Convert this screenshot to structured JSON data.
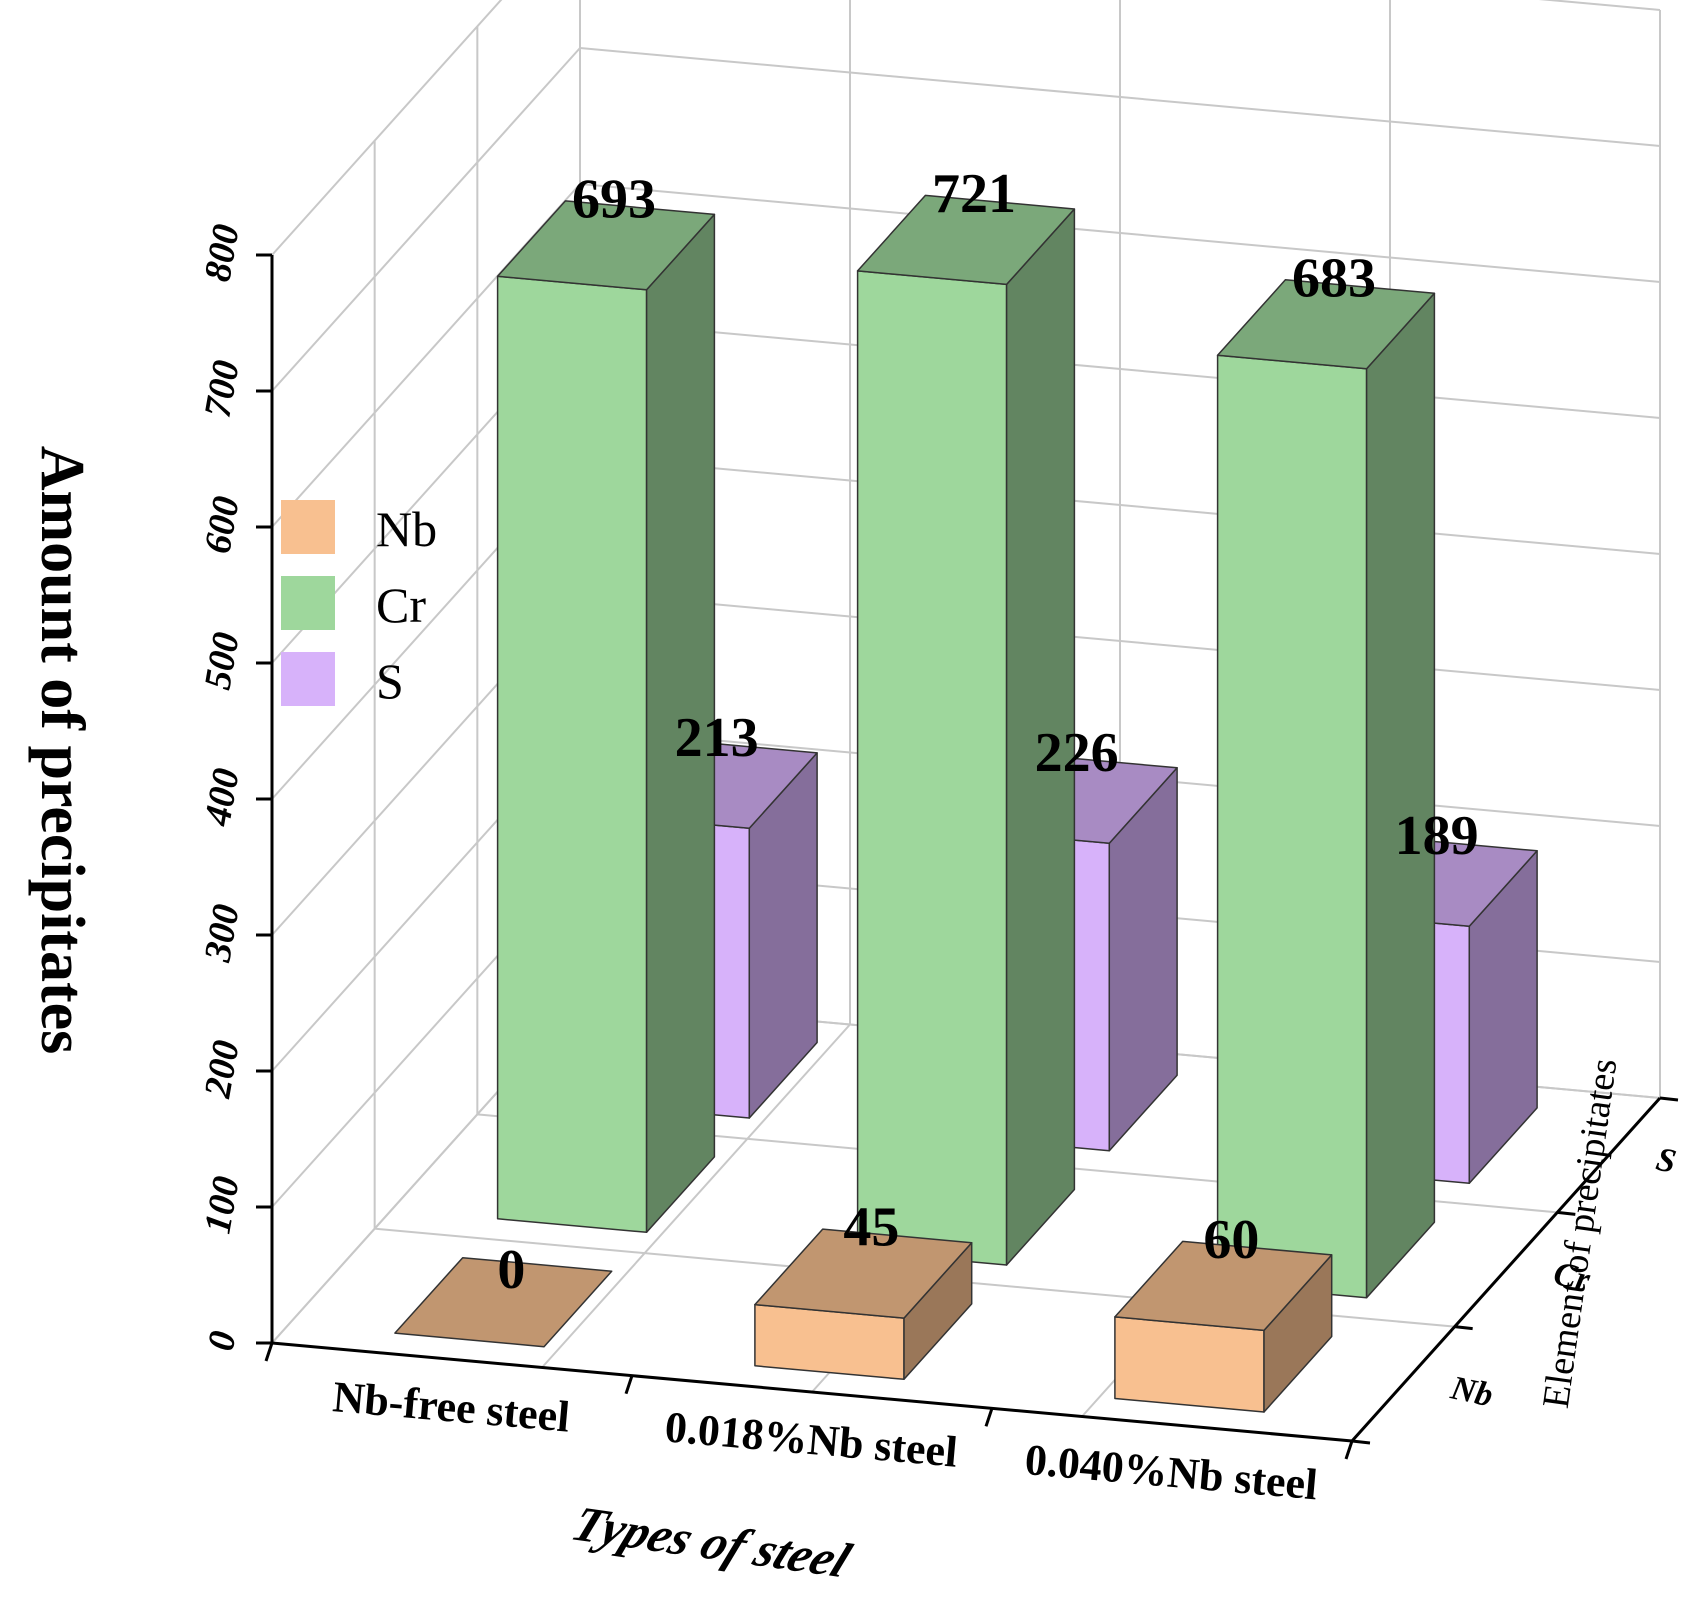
{
  "chart_data": {
    "type": "bar",
    "title": "",
    "categories": [
      "Nb-free steel",
      "0.018%Nb steel",
      "0.040%Nb steel"
    ],
    "series": [
      {
        "name": "Nb",
        "values": [
          0,
          45,
          60
        ],
        "color": "#f8c090"
      },
      {
        "name": "Cr",
        "values": [
          693,
          721,
          683
        ],
        "color": "#9ed79c"
      },
      {
        "name": "S",
        "values": [
          213,
          226,
          189
        ],
        "color": "#d7b2fa"
      }
    ],
    "data_labels": {
      "Nb": [
        "0",
        "45",
        "60"
      ],
      "Cr": [
        "693",
        "721",
        "683"
      ],
      "S": [
        "213",
        "226",
        "189"
      ]
    },
    "ylabel": "Amount of precipitates",
    "xlabel": "Types of steel",
    "zlabel": "Element of precipitates",
    "z_ticks": [
      "Nb",
      "Cr",
      "S"
    ],
    "ylim": [
      0,
      800
    ],
    "y_ticks": [
      "0",
      "100",
      "200",
      "300",
      "400",
      "500",
      "600",
      "700",
      "800"
    ],
    "grid": true,
    "legend_position": "left"
  }
}
